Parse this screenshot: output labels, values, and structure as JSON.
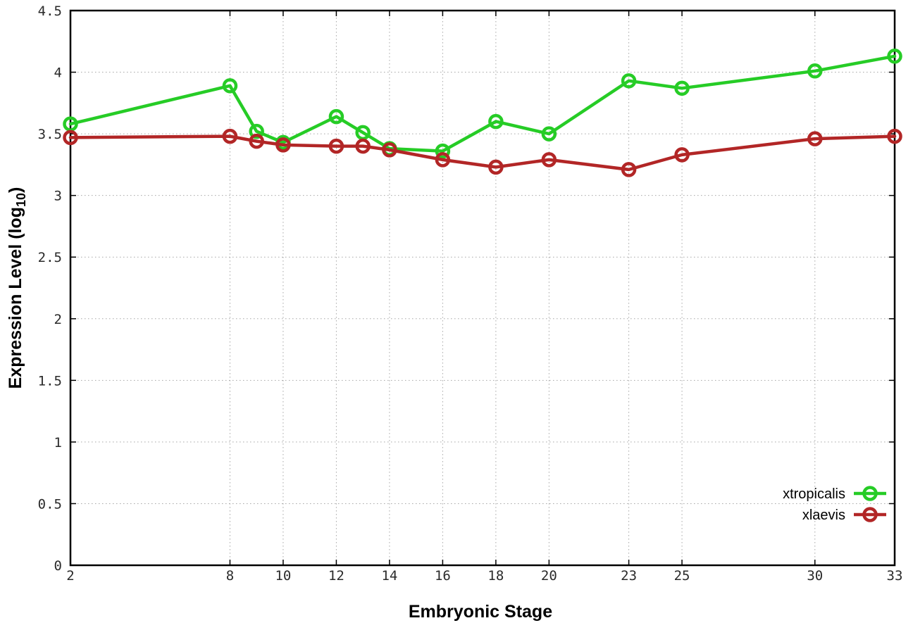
{
  "figure": {
    "background": "#ffffff",
    "axis_color": "#000000",
    "grid_color": "#a6a6a6",
    "tick_label_color": "#2a2a2a"
  },
  "chart_data": {
    "type": "line",
    "title": "",
    "xlabel": "Embryonic Stage",
    "ylabel": {
      "text": "Expression Level (log",
      "subscript": "10",
      "close": ")"
    },
    "xlim": [
      2,
      33
    ],
    "ylim": [
      0,
      4.5
    ],
    "grid": true,
    "xticks": {
      "values": [
        2,
        8,
        10,
        12,
        14,
        16,
        18,
        20,
        23,
        25,
        30,
        33
      ],
      "labels": [
        "2",
        "8",
        "10",
        "12",
        "14",
        "16",
        "18",
        "20",
        "23",
        "25",
        "30",
        "33"
      ]
    },
    "yticks": {
      "values": [
        0,
        0.5,
        1,
        1.5,
        2,
        2.5,
        3,
        3.5,
        4,
        4.5
      ],
      "labels": [
        "0",
        "0.5",
        "1",
        "1.5",
        "2",
        "2.5",
        "3",
        "3.5",
        "4",
        "4.5"
      ]
    },
    "x": [
      2,
      8,
      9,
      10,
      12,
      13,
      14,
      16,
      18,
      20,
      23,
      25,
      30,
      33
    ],
    "series": [
      {
        "name": "xtropicalis",
        "color": "#26cc26",
        "values": [
          3.58,
          3.89,
          3.52,
          3.43,
          3.64,
          3.51,
          3.38,
          3.36,
          3.6,
          3.5,
          3.93,
          3.87,
          4.01,
          4.13
        ]
      },
      {
        "name": "xlaevis",
        "color": "#b22626",
        "values": [
          3.47,
          3.48,
          3.44,
          3.41,
          3.4,
          3.4,
          3.37,
          3.29,
          3.23,
          3.29,
          3.21,
          3.33,
          3.46,
          3.48
        ]
      }
    ],
    "legend": {
      "position": "bottom-right",
      "entries": [
        "xtropicalis",
        "xlaevis"
      ]
    }
  }
}
